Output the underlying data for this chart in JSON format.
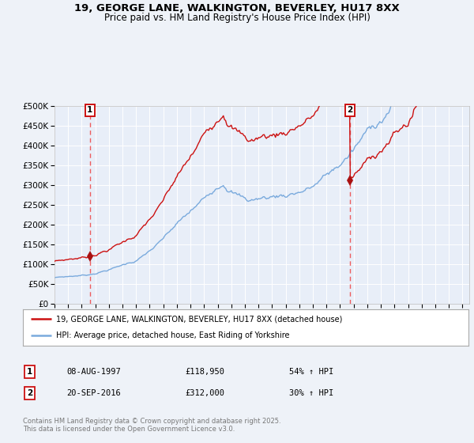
{
  "title_line1": "19, GEORGE LANE, WALKINGTON, BEVERLEY, HU17 8XX",
  "title_line2": "Price paid vs. HM Land Registry's House Price Index (HPI)",
  "legend_line1": "19, GEORGE LANE, WALKINGTON, BEVERLEY, HU17 8XX (detached house)",
  "legend_line2": "HPI: Average price, detached house, East Riding of Yorkshire",
  "sale1_price_str": "£118,950",
  "sale1_hpi_str": "54% ↑ HPI",
  "sale1_date_str": "08-AUG-1997",
  "sale2_price_str": "£312,000",
  "sale2_hpi_str": "30% ↑ HPI",
  "sale2_date_str": "20-SEP-2016",
  "sale1_year": 1997.6,
  "sale2_year": 2016.72,
  "sale1_price": 118950,
  "sale2_price": 312000,
  "ylabel_max": 500000,
  "xmin": 1995.0,
  "xmax": 2025.5,
  "background_color": "#eef2f8",
  "plot_bg_color": "#e8eef8",
  "red_line_color": "#cc1111",
  "blue_line_color": "#7aaadd",
  "grid_color": "#ffffff",
  "dashed_line_color": "#ee4444",
  "sale_marker_color": "#aa1111",
  "footnote": "Contains HM Land Registry data © Crown copyright and database right 2025.\nThis data is licensed under the Open Government Licence v3.0."
}
